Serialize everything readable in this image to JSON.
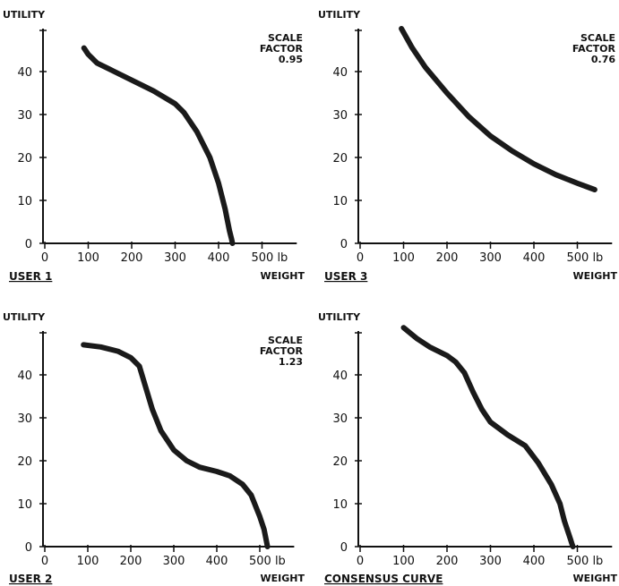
{
  "chart_data": [
    {
      "type": "line",
      "caption": "USER 1",
      "ylabel": "UTILITY",
      "xlabel": "WEIGHT",
      "x_ticks": [
        "0",
        "100",
        "200",
        "300",
        "400",
        "500 lb"
      ],
      "y_ticks": [
        "0",
        "10",
        "20",
        "30",
        "40"
      ],
      "scale_factor_lines": [
        "SCALE",
        "FACTOR",
        "0.95"
      ],
      "xlim": [
        0,
        550
      ],
      "ylim": [
        0,
        48
      ],
      "grid": false,
      "x": [
        90,
        100,
        120,
        150,
        200,
        250,
        300,
        320,
        350,
        380,
        400,
        415,
        425,
        430,
        432
      ],
      "y": [
        45.5,
        44,
        42,
        40.5,
        38,
        35.5,
        32.5,
        30.5,
        26,
        20,
        14,
        8,
        3,
        1,
        0
      ]
    },
    {
      "type": "line",
      "caption": "USER 3",
      "ylabel": "UTILITY",
      "xlabel": "WEIGHT",
      "x_ticks": [
        "0",
        "100",
        "200",
        "300",
        "400",
        "500 lb"
      ],
      "y_ticks": [
        "0",
        "10",
        "20",
        "30",
        "40"
      ],
      "scale_factor_lines": [
        "SCALE",
        "FACTOR",
        "0.76"
      ],
      "xlim": [
        0,
        550
      ],
      "ylim": [
        0,
        48
      ],
      "grid": false,
      "x": [
        95,
        120,
        150,
        200,
        250,
        300,
        350,
        400,
        450,
        500,
        540
      ],
      "y": [
        50,
        45.5,
        41,
        35,
        29.5,
        25,
        21.5,
        18.5,
        16,
        14,
        12.5
      ]
    },
    {
      "type": "line",
      "caption": "USER 2",
      "ylabel": "UTILITY",
      "xlabel": "WEIGHT",
      "x_ticks": [
        "0",
        "100",
        "200",
        "300",
        "400",
        "500 lb"
      ],
      "y_ticks": [
        "0",
        "10",
        "20",
        "30",
        "40"
      ],
      "scale_factor_lines": [
        "SCALE",
        "FACTOR",
        "1.23"
      ],
      "xlim": [
        0,
        550
      ],
      "ylim": [
        0,
        48
      ],
      "grid": false,
      "x": [
        90,
        130,
        170,
        200,
        220,
        235,
        250,
        270,
        300,
        330,
        360,
        400,
        430,
        460,
        480,
        500,
        510,
        515,
        518
      ],
      "y": [
        47,
        46.5,
        45.5,
        44,
        42,
        37,
        32,
        27,
        22.5,
        20,
        18.5,
        17.5,
        16.5,
        14.5,
        12,
        7,
        4,
        1.5,
        0
      ]
    },
    {
      "type": "line",
      "caption": "CONSENSUS CURVE",
      "ylabel": "UTILITY",
      "xlabel": "WEIGHT",
      "x_ticks": [
        "0",
        "100",
        "200",
        "300",
        "400",
        "500 lb"
      ],
      "y_ticks": [
        "0",
        "10",
        "20",
        "30",
        "40"
      ],
      "scale_factor_lines": [],
      "xlim": [
        0,
        550
      ],
      "ylim": [
        0,
        48
      ],
      "grid": false,
      "x": [
        100,
        130,
        160,
        200,
        220,
        240,
        260,
        280,
        300,
        340,
        380,
        410,
        440,
        460,
        470,
        480,
        485,
        488,
        490
      ],
      "y": [
        51,
        48.5,
        46.5,
        44.5,
        43,
        40.5,
        36,
        32,
        29,
        26,
        23.5,
        19.5,
        14.5,
        10,
        6,
        3,
        1.5,
        0.5,
        0
      ]
    }
  ]
}
